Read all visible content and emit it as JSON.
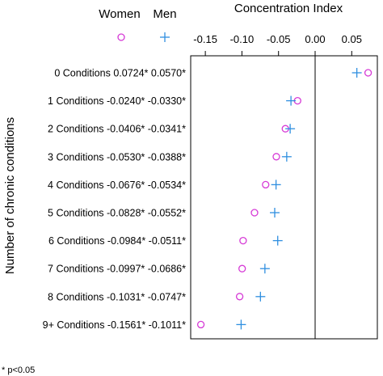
{
  "chart_data": {
    "type": "scatter",
    "title": "Concentration Index",
    "ylabel": "Number of chronic conditions",
    "footnote": "* p<0.05",
    "xlim": [
      -0.17,
      0.085
    ],
    "x_ticks": [
      -0.15,
      -0.1,
      -0.05,
      0.0,
      0.05
    ],
    "x_tick_labels": [
      "-0.15",
      "-0.10",
      "-0.05",
      "0.00",
      "0.05"
    ],
    "reference_line_x": 0.0,
    "legend": {
      "placement": "top",
      "entries": [
        {
          "name": "Women",
          "marker": "circle",
          "color": "#d63ad6"
        },
        {
          "name": "Men",
          "marker": "plus",
          "color": "#2f8fe0"
        }
      ]
    },
    "categories": [
      "0 Conditions",
      "1 Conditions",
      "2 Conditions",
      "3 Conditions",
      "4 Conditions",
      "5 Conditions",
      "6 Conditions",
      "7 Conditions",
      "8 Conditions",
      "9+ Conditions"
    ],
    "value_labels": {
      "women": [
        "0.0724*",
        "-0.0240*",
        "-0.0406*",
        "-0.0530*",
        "-0.0676*",
        "-0.0828*",
        "-0.0984*",
        "-0.0997*",
        "-0.1031*",
        "-0.1561*"
      ],
      "men": [
        "0.0570*",
        "-0.0330*",
        "-0.0341*",
        "-0.0388*",
        "-0.0534*",
        "-0.0552*",
        "-0.0511*",
        "-0.0686*",
        "-0.0747*",
        "-0.1011*"
      ]
    },
    "series": [
      {
        "name": "Women",
        "values": [
          0.0724,
          -0.024,
          -0.0406,
          -0.053,
          -0.0676,
          -0.0828,
          -0.0984,
          -0.0997,
          -0.1031,
          -0.1561
        ]
      },
      {
        "name": "Men",
        "values": [
          0.057,
          -0.033,
          -0.0341,
          -0.0388,
          -0.0534,
          -0.0552,
          -0.0511,
          -0.0686,
          -0.0747,
          -0.1011
        ]
      }
    ]
  }
}
